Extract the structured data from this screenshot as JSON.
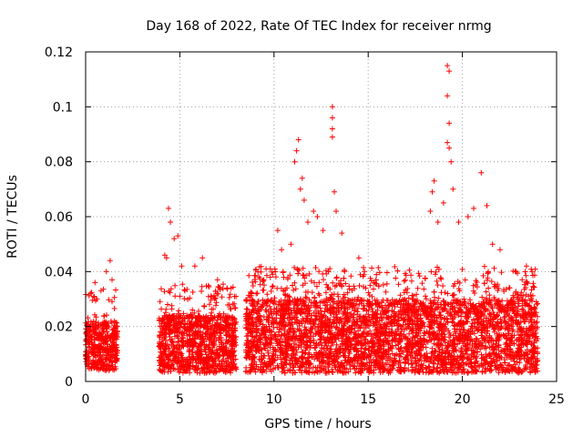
{
  "chart_data": {
    "type": "scatter",
    "title": "Day 168 of 2022, Rate Of TEC Index for receiver nrmg",
    "xlabel": "GPS time / hours",
    "ylabel": "ROTI / TECUs",
    "xlim": [
      0,
      25
    ],
    "ylim": [
      0,
      0.12
    ],
    "x_ticks": [
      0,
      5,
      10,
      15,
      20,
      25
    ],
    "y_ticks": [
      0,
      0.02,
      0.04,
      0.06,
      0.08,
      0.1,
      0.12
    ],
    "x_tick_labels": [
      "0",
      "5",
      "10",
      "15",
      "20",
      "25"
    ],
    "y_tick_labels": [
      "0",
      "0.02",
      "0.04",
      "0.06",
      "0.08",
      "0.1",
      "0.12"
    ],
    "grid": true,
    "marker": "plus",
    "color": "#ff0000",
    "series": [
      {
        "segments": [
          {
            "x_start": 0.0,
            "x_end": 1.7,
            "base_low": 0.004,
            "base_high": 0.022
          },
          {
            "x_start": 3.9,
            "x_end": 8.0,
            "base_low": 0.003,
            "base_high": 0.024
          },
          {
            "x_start": 8.5,
            "x_end": 24.0,
            "base_low": 0.003,
            "base_high": 0.03
          }
        ],
        "outliers": [
          [
            0.5,
            0.036
          ],
          [
            0.6,
            0.03
          ],
          [
            1.1,
            0.04
          ],
          [
            1.3,
            0.044
          ],
          [
            1.4,
            0.037
          ],
          [
            4.2,
            0.046
          ],
          [
            4.3,
            0.045
          ],
          [
            4.4,
            0.063
          ],
          [
            4.5,
            0.058
          ],
          [
            4.7,
            0.052
          ],
          [
            4.9,
            0.053
          ],
          [
            5.1,
            0.042
          ],
          [
            5.8,
            0.042
          ],
          [
            6.2,
            0.045
          ],
          [
            7.0,
            0.037
          ],
          [
            7.5,
            0.034
          ],
          [
            9.8,
            0.041
          ],
          [
            10.2,
            0.055
          ],
          [
            10.4,
            0.048
          ],
          [
            10.9,
            0.05
          ],
          [
            11.1,
            0.08
          ],
          [
            11.2,
            0.084
          ],
          [
            11.3,
            0.088
          ],
          [
            11.4,
            0.07
          ],
          [
            11.5,
            0.074
          ],
          [
            11.6,
            0.066
          ],
          [
            11.8,
            0.058
          ],
          [
            12.1,
            0.062
          ],
          [
            12.3,
            0.06
          ],
          [
            12.6,
            0.055
          ],
          [
            13.1,
            0.1
          ],
          [
            13.1,
            0.096
          ],
          [
            13.1,
            0.092
          ],
          [
            13.1,
            0.089
          ],
          [
            13.2,
            0.069
          ],
          [
            13.3,
            0.062
          ],
          [
            13.6,
            0.054
          ],
          [
            14.5,
            0.045
          ],
          [
            14.8,
            0.04
          ],
          [
            15.1,
            0.035
          ],
          [
            18.3,
            0.062
          ],
          [
            18.4,
            0.069
          ],
          [
            18.5,
            0.073
          ],
          [
            18.7,
            0.058
          ],
          [
            19.0,
            0.065
          ],
          [
            19.2,
            0.115
          ],
          [
            19.3,
            0.113
          ],
          [
            19.2,
            0.104
          ],
          [
            19.3,
            0.094
          ],
          [
            19.2,
            0.087
          ],
          [
            19.3,
            0.085
          ],
          [
            19.4,
            0.08
          ],
          [
            19.5,
            0.07
          ],
          [
            19.8,
            0.058
          ],
          [
            20.3,
            0.06
          ],
          [
            20.6,
            0.063
          ],
          [
            21.0,
            0.076
          ],
          [
            21.3,
            0.064
          ],
          [
            21.6,
            0.05
          ],
          [
            22.0,
            0.048
          ],
          [
            23.4,
            0.042
          ],
          [
            23.7,
            0.04
          ]
        ]
      }
    ]
  }
}
